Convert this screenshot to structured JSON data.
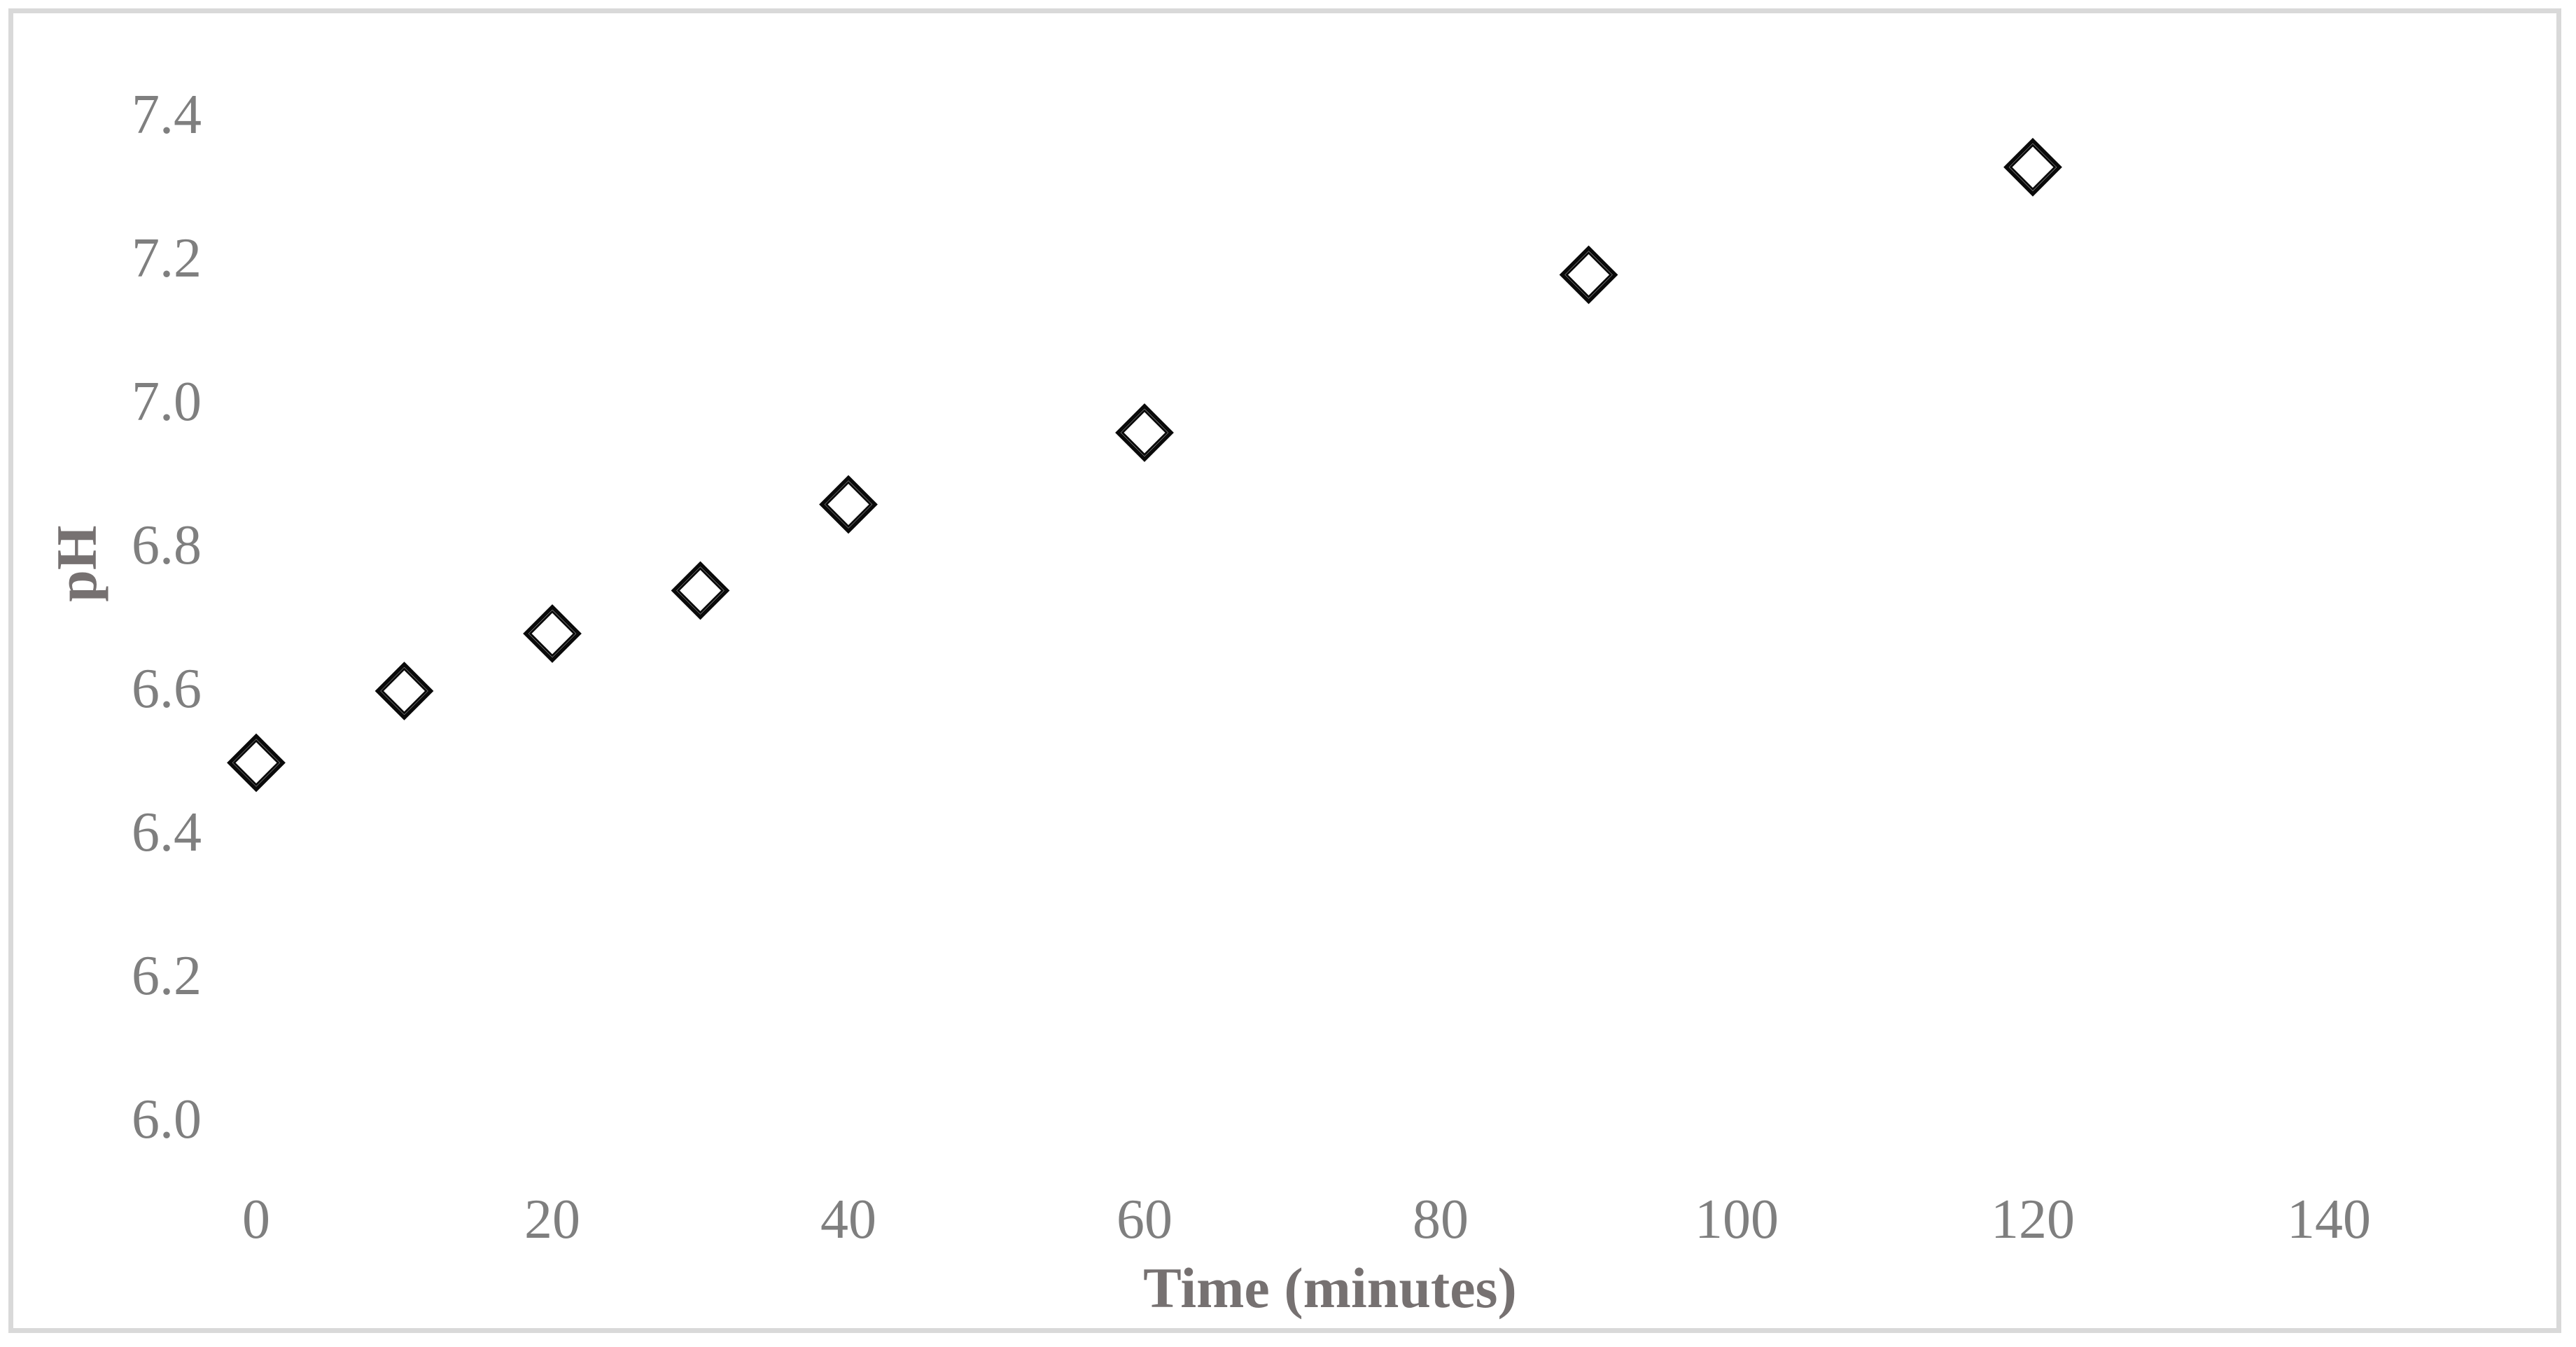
{
  "chart_data": {
    "type": "scatter",
    "title": "",
    "xlabel": "Time (minutes)",
    "ylabel": "pH",
    "x_values": [
      0,
      10,
      20,
      30,
      40,
      60,
      90,
      120
    ],
    "y_values": [
      6.5,
      6.6,
      6.68,
      6.74,
      6.86,
      6.96,
      7.18,
      7.33
    ],
    "x_ticks": [
      0,
      20,
      40,
      60,
      80,
      100,
      120,
      140
    ],
    "y_ticks": [
      6.0,
      6.2,
      6.4,
      6.6,
      6.8,
      7.0,
      7.2,
      7.4
    ],
    "xlim": [
      0,
      140
    ],
    "ylim": [
      6.0,
      7.4
    ],
    "grid": false,
    "legend": false,
    "axis_lines": false,
    "marker": {
      "shape": "open-double-diamond",
      "color": "#0a0a0a"
    },
    "colors": {
      "background": "#ffffff",
      "frame_border": "#d9d9d9",
      "tick_label": "#7f7f7f",
      "axis_title": "#767171",
      "marker_stroke": "#0a0a0a"
    }
  }
}
